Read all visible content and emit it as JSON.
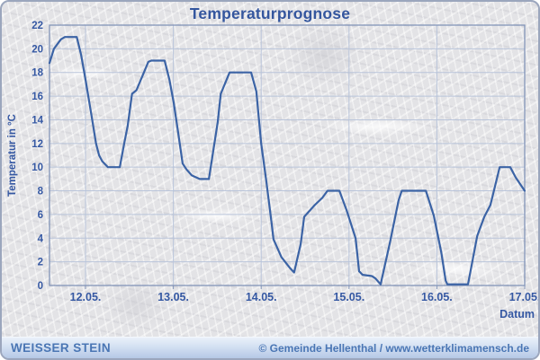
{
  "header": {
    "title": "Temperaturprognose"
  },
  "chart_data": {
    "type": "line",
    "title": "Temperaturprognose",
    "xlabel": "Datum",
    "ylabel": "Temperatur in °C",
    "grid": true,
    "legend": "none",
    "xlim": [
      -0.41,
      5.0
    ],
    "ylim": [
      0,
      22
    ],
    "y_tick_step": 2,
    "y_tick_labels": [
      "0",
      "2",
      "4",
      "6",
      "8",
      "10",
      "12",
      "14",
      "16",
      "18",
      "20",
      "22"
    ],
    "x_tick_positions": [
      0,
      1,
      2,
      3,
      4,
      5
    ],
    "x_tick_labels": [
      "12.05.",
      "13.05.",
      "14.05.",
      "15.05.",
      "16.05.",
      "17.05."
    ],
    "series": [
      {
        "name": "Temperatur in °C",
        "x_unit": "days from 12.05.",
        "points": [
          [
            -0.41,
            18.8
          ],
          [
            -0.36,
            20.0
          ],
          [
            -0.28,
            20.8
          ],
          [
            -0.235,
            21.0
          ],
          [
            -0.1,
            21.0
          ],
          [
            -0.05,
            19.5
          ],
          [
            0.0,
            17.4
          ],
          [
            0.07,
            14.3
          ],
          [
            0.12,
            12.0
          ],
          [
            0.155,
            11.0
          ],
          [
            0.19,
            10.5
          ],
          [
            0.255,
            10.0
          ],
          [
            0.39,
            10.0
          ],
          [
            0.44,
            12.0
          ],
          [
            0.48,
            13.5
          ],
          [
            0.53,
            16.2
          ],
          [
            0.58,
            16.5
          ],
          [
            0.665,
            18.0
          ],
          [
            0.715,
            18.9
          ],
          [
            0.75,
            19.0
          ],
          [
            0.9,
            19.0
          ],
          [
            0.955,
            17.4
          ],
          [
            1.005,
            15.4
          ],
          [
            1.055,
            12.9
          ],
          [
            1.105,
            10.3
          ],
          [
            1.15,
            9.8
          ],
          [
            1.21,
            9.3
          ],
          [
            1.3,
            9.0
          ],
          [
            1.405,
            9.0
          ],
          [
            1.455,
            11.4
          ],
          [
            1.505,
            13.8
          ],
          [
            1.54,
            16.2
          ],
          [
            1.64,
            18.0
          ],
          [
            1.885,
            18.0
          ],
          [
            1.945,
            16.4
          ],
          [
            2.0,
            12.0
          ],
          [
            2.06,
            8.7
          ],
          [
            2.12,
            5.2
          ],
          [
            2.14,
            3.9
          ],
          [
            2.23,
            2.4
          ],
          [
            2.325,
            1.5
          ],
          [
            2.375,
            1.1
          ],
          [
            2.45,
            3.5
          ],
          [
            2.49,
            5.8
          ],
          [
            2.61,
            6.8
          ],
          [
            2.695,
            7.4
          ],
          [
            2.755,
            8.0
          ],
          [
            2.89,
            8.0
          ],
          [
            2.97,
            6.4
          ],
          [
            3.075,
            4.0
          ],
          [
            3.115,
            1.2
          ],
          [
            3.155,
            0.9
          ],
          [
            3.26,
            0.8
          ],
          [
            3.3,
            0.6
          ],
          [
            3.36,
            0.1
          ],
          [
            3.465,
            3.6
          ],
          [
            3.565,
            7.2
          ],
          [
            3.6,
            8.0
          ],
          [
            3.875,
            8.0
          ],
          [
            3.965,
            5.9
          ],
          [
            4.05,
            2.8
          ],
          [
            4.1,
            0.4
          ],
          [
            4.12,
            0.1
          ],
          [
            4.355,
            0.1
          ],
          [
            4.46,
            4.2
          ],
          [
            4.54,
            5.8
          ],
          [
            4.61,
            6.8
          ],
          [
            4.715,
            10.0
          ],
          [
            4.835,
            10.0
          ],
          [
            4.9,
            9.1
          ],
          [
            5.0,
            8.0
          ]
        ]
      }
    ],
    "colors": {
      "line": "#3b63a5",
      "grid": "#b9c4da",
      "frame": "#8294b8",
      "axis_text": "#3558a3",
      "title_text": "#34569e"
    }
  },
  "footer": {
    "left": "WEISSER STEIN",
    "right": "© Gemeinde Hellenthal / www.wetterklimamensch.de"
  }
}
